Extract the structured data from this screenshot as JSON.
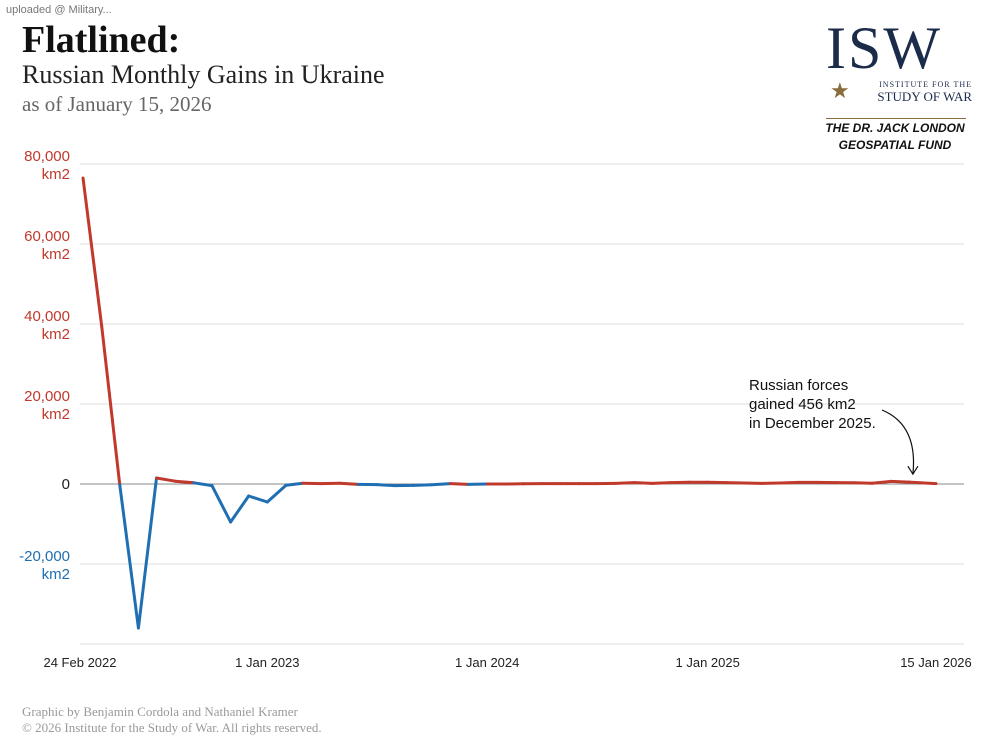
{
  "watermark": "uploaded @ Military...",
  "header": {
    "title": "Flatlined:",
    "subtitle": "Russian Monthly Gains in Ukraine",
    "as_of": "as of January 15, 2026"
  },
  "logo": {
    "letters": "ISW",
    "line1": "INSTITUTE FOR THE",
    "line2": "STUDY OF WAR",
    "fund_line1": "THE DR. JACK LONDON",
    "fund_line2": "GEOSPATIAL FUND"
  },
  "footer": {
    "credit": "Graphic by Benjamin Cordola and Nathaniel Kramer",
    "copyright": "© 2026 Institute for the Study of War. All rights reserved."
  },
  "colors": {
    "gain": "#c0392b",
    "loss": "#1f6fb2",
    "grid": "#dddddd",
    "axis": "#999999"
  },
  "chart_data": {
    "type": "line",
    "title": "Russian Monthly Gains in Ukraine",
    "ylim": [
      -40000,
      80000
    ],
    "grid": true,
    "y_ticks": [
      {
        "value": 80000,
        "line1": "80,000",
        "line2": "km2",
        "sign": "pos"
      },
      {
        "value": 60000,
        "line1": "60,000",
        "line2": "km2",
        "sign": "pos"
      },
      {
        "value": 40000,
        "line1": "40,000",
        "line2": "km2",
        "sign": "pos"
      },
      {
        "value": 20000,
        "line1": "20,000",
        "line2": "km2",
        "sign": "pos"
      },
      {
        "value": 0,
        "line1": "0",
        "line2": "",
        "sign": "zero"
      },
      {
        "value": -20000,
        "line1": "-20,000",
        "line2": "km2",
        "sign": "neg"
      }
    ],
    "x_ticks": [
      {
        "date": "2022-02-24",
        "label": "24 Feb 2022"
      },
      {
        "date": "2023-01-01",
        "label": "1 Jan 2023"
      },
      {
        "date": "2024-01-01",
        "label": "1 Jan 2024"
      },
      {
        "date": "2025-01-01",
        "label": "1 Jan 2025"
      },
      {
        "date": "2026-01-15",
        "label": "15 Jan 2026"
      }
    ],
    "x_range": [
      "2022-02-24",
      "2026-01-15"
    ],
    "series": [
      {
        "points": [
          [
            "2022-03-01",
            76500
          ],
          [
            "2022-04-01",
            39500
          ],
          [
            "2022-05-01",
            -200
          ],
          [
            "2022-06-01",
            -36000
          ],
          [
            "2022-07-01",
            1500
          ],
          [
            "2022-08-01",
            700
          ],
          [
            "2022-09-01",
            300
          ],
          [
            "2022-10-01",
            -400
          ],
          [
            "2022-11-01",
            -9500
          ],
          [
            "2022-12-01",
            -3000
          ],
          [
            "2023-01-01",
            -4500
          ],
          [
            "2023-02-01",
            -300
          ],
          [
            "2023-03-01",
            200
          ],
          [
            "2023-04-01",
            100
          ],
          [
            "2023-05-01",
            200
          ],
          [
            "2023-06-01",
            -100
          ],
          [
            "2023-07-01",
            -150
          ],
          [
            "2023-08-01",
            -400
          ],
          [
            "2023-09-01",
            -350
          ],
          [
            "2023-10-01",
            -200
          ],
          [
            "2023-11-01",
            100
          ],
          [
            "2023-12-01",
            -100
          ],
          [
            "2024-01-01",
            0
          ],
          [
            "2024-02-01",
            0
          ],
          [
            "2024-03-01",
            50
          ],
          [
            "2024-04-01",
            100
          ],
          [
            "2024-05-01",
            100
          ],
          [
            "2024-06-01",
            100
          ],
          [
            "2024-07-01",
            100
          ],
          [
            "2024-08-01",
            150
          ],
          [
            "2024-09-01",
            350
          ],
          [
            "2024-10-01",
            150
          ],
          [
            "2024-11-01",
            350
          ],
          [
            "2024-12-01",
            450
          ],
          [
            "2025-01-01",
            450
          ],
          [
            "2025-02-01",
            350
          ],
          [
            "2025-03-01",
            250
          ],
          [
            "2025-04-01",
            150
          ],
          [
            "2025-05-01",
            250
          ],
          [
            "2025-06-01",
            400
          ],
          [
            "2025-07-01",
            400
          ],
          [
            "2025-08-01",
            350
          ],
          [
            "2025-09-01",
            300
          ],
          [
            "2025-10-01",
            200
          ],
          [
            "2025-11-01",
            650
          ],
          [
            "2025-12-01",
            456
          ],
          [
            "2026-01-15",
            100
          ]
        ]
      }
    ],
    "annotation": {
      "lines": [
        "Russian forces",
        "gained 456 km2",
        "in December 2025."
      ],
      "target_date": "2025-12-01",
      "target_value": 456
    }
  }
}
